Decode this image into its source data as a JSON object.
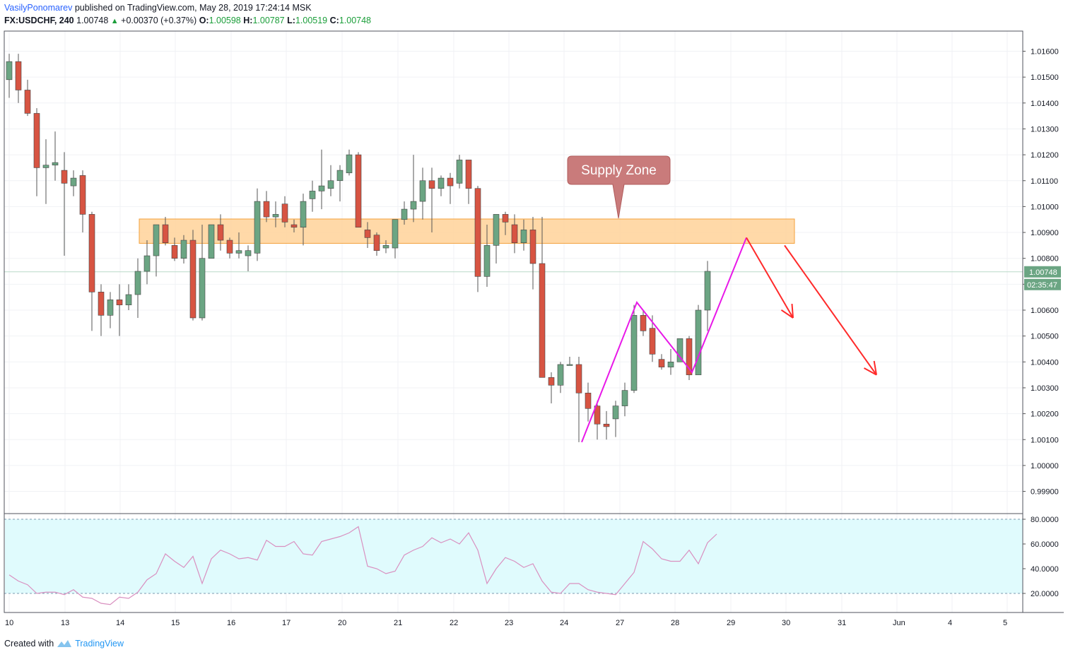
{
  "header": {
    "author": "VasilyPonomarev",
    "published_text": "published on TradingView.com, May 28, 2019 17:24:14 MSK",
    "symbol": "FX:USDCHF, 240",
    "last": "1.00748",
    "change": "+0.00370 (+0.37%)",
    "open_label": "O:",
    "open": "1.00598",
    "high_label": "H:",
    "high": "1.00787",
    "low_label": "L:",
    "low": "1.00519",
    "close_label": "C:",
    "close": "1.00748"
  },
  "footer": {
    "created_with": "Created with",
    "brand": "TradingView"
  },
  "colors": {
    "up": "#6ba583",
    "down": "#d75442",
    "zone_fill": "#ffd59e",
    "zone_stroke": "#f3a13c",
    "pattern": "#e818e8",
    "arrow": "#ff2a2a",
    "callout": "#c97b7b",
    "rsi_line": "#d990c0",
    "rsi_bg": "#e0fbfd",
    "price_tag": "#6ba583"
  },
  "chart_data": [
    {
      "type": "candlestick",
      "symbol": "FX:USDCHF",
      "interval": "240",
      "x_tick_labels": [
        "10",
        "13",
        "14",
        "15",
        "16",
        "17",
        "20",
        "21",
        "22",
        "23",
        "24",
        "27",
        "28",
        "29",
        "30",
        "31",
        "Jun",
        "4",
        "5"
      ],
      "y_ticks": [
        "1.01600",
        "1.01500",
        "1.01400",
        "1.01300",
        "1.01200",
        "1.01100",
        "1.01000",
        "1.00900",
        "1.00800",
        "1.00700",
        "1.00600",
        "1.00500",
        "1.00400",
        "1.00300",
        "1.00200",
        "1.00100",
        "1.00000",
        "0.99900"
      ],
      "ylim": [
        0.9985,
        1.0171
      ],
      "last_price_label": "1.00748",
      "countdown_label": "02:35:47",
      "candles": [
        {
          "o": 1.0149,
          "h": 1.0159,
          "l": 1.0142,
          "c": 1.0156
        },
        {
          "o": 1.0156,
          "h": 1.0159,
          "l": 1.014,
          "c": 1.0145
        },
        {
          "o": 1.0145,
          "h": 1.0149,
          "l": 1.0135,
          "c": 1.0136
        },
        {
          "o": 1.0136,
          "h": 1.0138,
          "l": 1.0104,
          "c": 1.0115
        },
        {
          "o": 1.0115,
          "h": 1.0126,
          "l": 1.0101,
          "c": 1.0116
        },
        {
          "o": 1.0116,
          "h": 1.0129,
          "l": 1.011,
          "c": 1.0117
        },
        {
          "o": 1.0114,
          "h": 1.0121,
          "l": 1.0081,
          "c": 1.0109
        },
        {
          "o": 1.0108,
          "h": 1.0114,
          "l": 1.0104,
          "c": 1.0111
        },
        {
          "o": 1.0112,
          "h": 1.0114,
          "l": 1.009,
          "c": 1.0097
        },
        {
          "o": 1.0097,
          "h": 1.0098,
          "l": 1.0052,
          "c": 1.0067
        },
        {
          "o": 1.0067,
          "h": 1.007,
          "l": 1.005,
          "c": 1.0058
        },
        {
          "o": 1.0058,
          "h": 1.0067,
          "l": 1.0053,
          "c": 1.0064
        },
        {
          "o": 1.0064,
          "h": 1.007,
          "l": 1.005,
          "c": 1.0062
        },
        {
          "o": 1.0062,
          "h": 1.007,
          "l": 1.006,
          "c": 1.0066
        },
        {
          "o": 1.0066,
          "h": 1.008,
          "l": 1.0057,
          "c": 1.0075
        },
        {
          "o": 1.0075,
          "h": 1.0087,
          "l": 1.007,
          "c": 1.0081
        },
        {
          "o": 1.0081,
          "h": 1.0093,
          "l": 1.0073,
          "c": 1.0093
        },
        {
          "o": 1.0093,
          "h": 1.0096,
          "l": 1.0085,
          "c": 1.0086
        },
        {
          "o": 1.0085,
          "h": 1.0088,
          "l": 1.0079,
          "c": 1.008
        },
        {
          "o": 1.008,
          "h": 1.0089,
          "l": 1.0078,
          "c": 1.0087
        },
        {
          "o": 1.0087,
          "h": 1.0091,
          "l": 1.0056,
          "c": 1.0057
        },
        {
          "o": 1.0057,
          "h": 1.0093,
          "l": 1.0056,
          "c": 1.008
        },
        {
          "o": 1.008,
          "h": 1.0093,
          "l": 1.008,
          "c": 1.0093
        },
        {
          "o": 1.0093,
          "h": 1.0097,
          "l": 1.0083,
          "c": 1.0087
        },
        {
          "o": 1.0087,
          "h": 1.0088,
          "l": 1.008,
          "c": 1.0082
        },
        {
          "o": 1.0082,
          "h": 1.009,
          "l": 1.008,
          "c": 1.0083
        },
        {
          "o": 1.0081,
          "h": 1.0085,
          "l": 1.0075,
          "c": 1.0083
        },
        {
          "o": 1.0082,
          "h": 1.0107,
          "l": 1.0079,
          "c": 1.0102
        },
        {
          "o": 1.0102,
          "h": 1.0106,
          "l": 1.0094,
          "c": 1.0096
        },
        {
          "o": 1.0096,
          "h": 1.0102,
          "l": 1.0092,
          "c": 1.0097
        },
        {
          "o": 1.0101,
          "h": 1.0104,
          "l": 1.0092,
          "c": 1.0094
        },
        {
          "o": 1.0093,
          "h": 1.0095,
          "l": 1.009,
          "c": 1.0092
        },
        {
          "o": 1.0092,
          "h": 1.0105,
          "l": 1.0085,
          "c": 1.0102
        },
        {
          "o": 1.0103,
          "h": 1.011,
          "l": 1.0098,
          "c": 1.0106
        },
        {
          "o": 1.0106,
          "h": 1.0122,
          "l": 1.0099,
          "c": 1.0108
        },
        {
          "o": 1.0107,
          "h": 1.0116,
          "l": 1.0104,
          "c": 1.011
        },
        {
          "o": 1.011,
          "h": 1.0116,
          "l": 1.0102,
          "c": 1.0114
        },
        {
          "o": 1.0113,
          "h": 1.0122,
          "l": 1.0112,
          "c": 1.012
        },
        {
          "o": 1.012,
          "h": 1.0121,
          "l": 1.0092,
          "c": 1.0092
        },
        {
          "o": 1.0091,
          "h": 1.0094,
          "l": 1.0084,
          "c": 1.0088
        },
        {
          "o": 1.0089,
          "h": 1.009,
          "l": 1.0081,
          "c": 1.0083
        },
        {
          "o": 1.0084,
          "h": 1.0087,
          "l": 1.0082,
          "c": 1.0085
        },
        {
          "o": 1.0084,
          "h": 1.0095,
          "l": 1.008,
          "c": 1.0095
        },
        {
          "o": 1.0095,
          "h": 1.0102,
          "l": 1.0093,
          "c": 1.0099
        },
        {
          "o": 1.0099,
          "h": 1.012,
          "l": 1.0094,
          "c": 1.0102
        },
        {
          "o": 1.0102,
          "h": 1.0115,
          "l": 1.0095,
          "c": 1.011
        },
        {
          "o": 1.011,
          "h": 1.0115,
          "l": 1.009,
          "c": 1.0107
        },
        {
          "o": 1.0107,
          "h": 1.0112,
          "l": 1.0104,
          "c": 1.0111
        },
        {
          "o": 1.0111,
          "h": 1.0113,
          "l": 1.0101,
          "c": 1.0108
        },
        {
          "o": 1.0109,
          "h": 1.012,
          "l": 1.0107,
          "c": 1.0118
        },
        {
          "o": 1.0118,
          "h": 1.0118,
          "l": 1.0101,
          "c": 1.0107
        },
        {
          "o": 1.0107,
          "h": 1.0108,
          "l": 1.0067,
          "c": 1.0073
        },
        {
          "o": 1.0073,
          "h": 1.0093,
          "l": 1.0069,
          "c": 1.0085
        },
        {
          "o": 1.0085,
          "h": 1.0097,
          "l": 1.0078,
          "c": 1.0097
        },
        {
          "o": 1.0097,
          "h": 1.0098,
          "l": 1.0089,
          "c": 1.0094
        },
        {
          "o": 1.0093,
          "h": 1.0097,
          "l": 1.0082,
          "c": 1.0086
        },
        {
          "o": 1.0086,
          "h": 1.0095,
          "l": 1.0083,
          "c": 1.0091
        },
        {
          "o": 1.0091,
          "h": 1.0096,
          "l": 1.0068,
          "c": 1.0078
        },
        {
          "o": 1.0078,
          "h": 1.0096,
          "l": 1.0034,
          "c": 1.0034
        },
        {
          "o": 1.0034,
          "h": 1.0036,
          "l": 1.0024,
          "c": 1.0031
        },
        {
          "o": 1.0031,
          "h": 1.004,
          "l": 1.0028,
          "c": 1.0039
        },
        {
          "o": 1.0039,
          "h": 1.0042,
          "l": 1.0039,
          "c": 1.0039
        },
        {
          "o": 1.0039,
          "h": 1.0042,
          "l": 1.0009,
          "c": 1.0028
        },
        {
          "o": 1.0028,
          "h": 1.0032,
          "l": 1.0017,
          "c": 1.0022
        },
        {
          "o": 1.0023,
          "h": 1.0025,
          "l": 1.001,
          "c": 1.0016
        },
        {
          "o": 1.0016,
          "h": 1.0021,
          "l": 1.001,
          "c": 1.0015
        },
        {
          "o": 1.0018,
          "h": 1.0025,
          "l": 1.0011,
          "c": 1.0023
        },
        {
          "o": 1.0023,
          "h": 1.0032,
          "l": 1.0019,
          "c": 1.0029
        },
        {
          "o": 1.0029,
          "h": 1.0062,
          "l": 1.0028,
          "c": 1.0058
        },
        {
          "o": 1.0058,
          "h": 1.006,
          "l": 1.005,
          "c": 1.0052
        },
        {
          "o": 1.0053,
          "h": 1.0058,
          "l": 1.004,
          "c": 1.0043
        },
        {
          "o": 1.0041,
          "h": 1.0043,
          "l": 1.0037,
          "c": 1.0038
        },
        {
          "o": 1.0038,
          "h": 1.0045,
          "l": 1.0035,
          "c": 1.004
        },
        {
          "o": 1.004,
          "h": 1.0049,
          "l": 1.004,
          "c": 1.0049
        },
        {
          "o": 1.0049,
          "h": 1.005,
          "l": 1.0033,
          "c": 1.0035
        },
        {
          "o": 1.0035,
          "h": 1.0062,
          "l": 1.0035,
          "c": 1.006
        },
        {
          "o": 1.006,
          "h": 1.0079,
          "l": 1.0052,
          "c": 1.0075
        }
      ],
      "supply_zone": {
        "label": "Supply Zone",
        "price_top": 1.00952,
        "price_bottom": 1.00858
      },
      "zigzag_price_points": [
        1.0009,
        1.0063,
        1.0036,
        1.0088
      ],
      "projection_arrows": [
        {
          "from": 1.0088,
          "to": 1.0057
        },
        {
          "from": 1.0085,
          "to": 1.0035
        }
      ]
    },
    {
      "type": "line",
      "name": "RSI",
      "y_ticks": [
        "80.0000",
        "60.0000",
        "40.0000",
        "20.0000"
      ],
      "ylim": [
        5,
        85
      ],
      "bands": [
        20,
        80
      ],
      "values": [
        35,
        30,
        27,
        20,
        21,
        21,
        19,
        23,
        17,
        16,
        12,
        11,
        17,
        16,
        21,
        31,
        36,
        52,
        46,
        41,
        50,
        28,
        48,
        55,
        52,
        48,
        49,
        47,
        63,
        58,
        58,
        62,
        52,
        51,
        62,
        64,
        66,
        69,
        74,
        42,
        40,
        36,
        38,
        51,
        55,
        58,
        65,
        61,
        64,
        60,
        69,
        55,
        28,
        40,
        49,
        46,
        41,
        44,
        30,
        21,
        20,
        28,
        28,
        23,
        21,
        20,
        19,
        28,
        37,
        62,
        56,
        48,
        46,
        46,
        55,
        44,
        61,
        68
      ]
    }
  ]
}
